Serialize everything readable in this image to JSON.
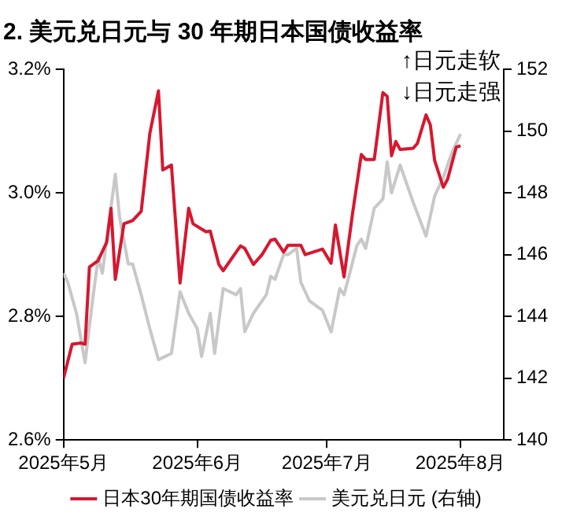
{
  "chart_data": {
    "type": "line",
    "title": "2. 美元兑日元与 30 年期日本国债收益率",
    "annotations": [
      "↑日元走软",
      "↓日元走强"
    ],
    "xlim": [
      "2025-05-01",
      "2025-08-11"
    ],
    "xticks": [
      {
        "value": "2025-05-01",
        "label": "2025年5月"
      },
      {
        "value": "2025-06-01",
        "label": "2025年6月"
      },
      {
        "value": "2025-07-01",
        "label": "2025年7月"
      },
      {
        "value": "2025-08-01",
        "label": "2025年8月"
      }
    ],
    "ylim": [
      2.6,
      3.2
    ],
    "yticks": [
      {
        "value": 2.6,
        "label": "2.6%"
      },
      {
        "value": 2.8,
        "label": "2.8%"
      },
      {
        "value": 3.0,
        "label": "3.0%"
      },
      {
        "value": 3.2,
        "label": "3.2%"
      }
    ],
    "y2lim": [
      140,
      152
    ],
    "y2ticks": [
      140,
      142,
      144,
      146,
      148,
      150,
      152
    ],
    "grid": false,
    "legend": "bottom",
    "marker": "none",
    "line_style": "solid",
    "series": [
      {
        "name": "日本30年期国债收益率",
        "color": "#d7172f",
        "x": [
          "2025-05-01",
          "2025-05-03",
          "2025-05-05",
          "2025-05-06",
          "2025-05-07",
          "2025-05-09",
          "2025-05-11",
          "2025-05-12",
          "2025-05-13",
          "2025-05-15",
          "2025-05-17",
          "2025-05-19",
          "2025-05-21",
          "2025-05-23",
          "2025-05-24",
          "2025-05-26",
          "2025-05-28",
          "2025-05-30",
          "2025-05-31",
          "2025-06-03",
          "2025-06-04",
          "2025-06-06",
          "2025-06-07",
          "2025-06-11",
          "2025-06-12",
          "2025-06-14",
          "2025-06-16",
          "2025-06-18",
          "2025-06-19",
          "2025-06-21",
          "2025-06-22",
          "2025-06-25",
          "2025-06-26",
          "2025-06-30",
          "2025-07-02",
          "2025-07-03",
          "2025-07-05",
          "2025-07-07",
          "2025-07-09",
          "2025-07-10",
          "2025-07-12",
          "2025-07-14",
          "2025-07-15",
          "2025-07-16",
          "2025-07-17",
          "2025-07-18",
          "2025-07-21",
          "2025-07-22",
          "2025-07-24",
          "2025-07-25",
          "2025-07-26",
          "2025-07-28",
          "2025-07-29",
          "2025-07-31",
          "2025-08-01"
        ],
        "values": [
          2.7,
          2.755,
          2.757,
          2.755,
          2.88,
          2.89,
          2.92,
          2.975,
          2.86,
          2.95,
          2.955,
          2.97,
          3.096,
          3.165,
          3.037,
          3.045,
          2.854,
          2.975,
          2.95,
          2.937,
          2.938,
          2.884,
          2.874,
          2.914,
          2.91,
          2.884,
          2.9,
          2.923,
          2.925,
          2.904,
          2.915,
          2.915,
          2.9,
          2.909,
          2.886,
          2.948,
          2.864,
          2.968,
          3.062,
          3.054,
          3.054,
          3.162,
          3.156,
          3.06,
          3.083,
          3.07,
          3.072,
          3.08,
          3.126,
          3.11,
          3.052,
          3.009,
          3.022,
          3.074,
          3.076
        ]
      },
      {
        "name": "美元兑日元 (右轴)",
        "color": "#c8c8c8",
        "axis": "y2",
        "x": [
          "2025-05-01",
          "2025-05-02",
          "2025-05-04",
          "2025-05-06",
          "2025-05-07",
          "2025-05-09",
          "2025-05-10",
          "2025-05-13",
          "2025-05-14",
          "2025-05-16",
          "2025-05-17",
          "2025-05-19",
          "2025-05-21",
          "2025-05-23",
          "2025-05-26",
          "2025-05-28",
          "2025-05-30",
          "2025-06-01",
          "2025-06-02",
          "2025-06-04",
          "2025-06-05",
          "2025-06-07",
          "2025-06-10",
          "2025-06-11",
          "2025-06-12",
          "2025-06-14",
          "2025-06-17",
          "2025-06-18",
          "2025-06-19",
          "2025-06-21",
          "2025-06-22",
          "2025-06-24",
          "2025-06-25",
          "2025-06-27",
          "2025-06-30",
          "2025-07-02",
          "2025-07-04",
          "2025-07-05",
          "2025-07-08",
          "2025-07-09",
          "2025-07-10",
          "2025-07-12",
          "2025-07-14",
          "2025-07-15",
          "2025-07-16",
          "2025-07-18",
          "2025-07-21",
          "2025-07-24",
          "2025-07-26",
          "2025-07-28",
          "2025-07-30",
          "2025-08-01"
        ],
        "values": [
          145.4,
          145.1,
          144.1,
          142.5,
          143.7,
          145.9,
          145.4,
          148.6,
          147.2,
          145.7,
          145.7,
          144.7,
          143.6,
          142.6,
          142.8,
          144.8,
          144.1,
          143.6,
          142.7,
          144.1,
          142.8,
          144.9,
          144.7,
          144.9,
          143.5,
          144.1,
          144.7,
          145.3,
          145.2,
          146.0,
          146.0,
          146.2,
          145.1,
          144.5,
          144.2,
          143.5,
          144.9,
          144.7,
          146.3,
          146.5,
          146.2,
          147.5,
          147.8,
          149.0,
          148.0,
          148.9,
          147.7,
          146.6,
          147.9,
          148.5,
          149.3,
          149.9
        ]
      }
    ]
  }
}
